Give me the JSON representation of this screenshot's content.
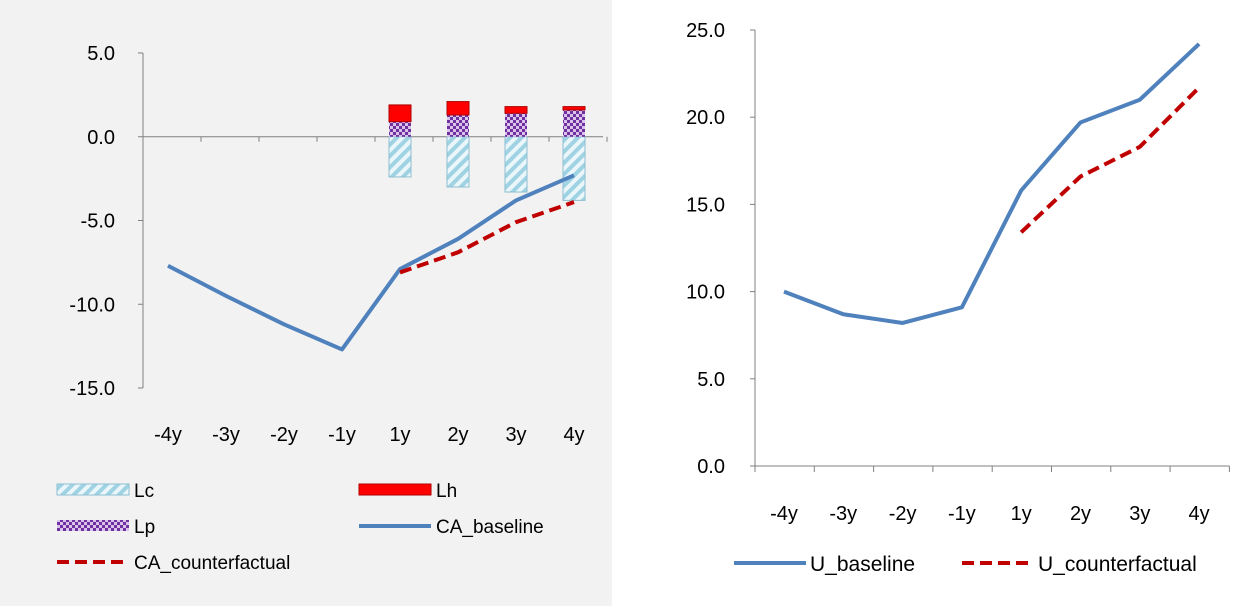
{
  "chart_data": [
    {
      "type": "bar",
      "title": "",
      "xlabel": "",
      "ylabel": "",
      "categories": [
        "-4y",
        "-3y",
        "-2y",
        "-1y",
        "1y",
        "2y",
        "3y",
        "4y"
      ],
      "ylim": [
        -15,
        5
      ],
      "yticks": [
        "5.0",
        "0.0",
        "-5.0",
        "-10.0",
        "-15.0"
      ],
      "grid": false,
      "legend_position": "bottom",
      "stacked_bars": [
        {
          "name": "Lc",
          "color": "#9fd3e3",
          "pattern": "diagonal-hatch",
          "values": [
            null,
            null,
            null,
            null,
            -2.4,
            -3.0,
            -3.3,
            -3.8
          ]
        },
        {
          "name": "Lh",
          "color": "#ff0000",
          "values": [
            null,
            null,
            null,
            null,
            1.0,
            0.8,
            0.4,
            0.2
          ]
        },
        {
          "name": "Lp",
          "color": "#7030a0",
          "pattern": "checker",
          "values": [
            null,
            null,
            null,
            null,
            0.9,
            1.3,
            1.4,
            1.6
          ]
        }
      ],
      "series": [
        {
          "name": "CA_baseline",
          "color": "#4f81bd",
          "style": "solid",
          "values": [
            -7.7,
            -9.5,
            -11.2,
            -12.7,
            -7.9,
            -6.1,
            -3.8,
            -2.3
          ]
        },
        {
          "name": "CA_counterfactual",
          "color": "#c00000",
          "style": "dashed",
          "values": [
            null,
            null,
            null,
            null,
            -8.1,
            -6.9,
            -5.1,
            -3.9
          ]
        }
      ],
      "legend": [
        "Lc",
        "Lh",
        "Lp",
        "CA_baseline",
        "CA_counterfactual"
      ]
    },
    {
      "type": "line",
      "title": "",
      "xlabel": "",
      "ylabel": "",
      "categories": [
        "-4y",
        "-3y",
        "-2y",
        "-1y",
        "1y",
        "2y",
        "3y",
        "4y"
      ],
      "ylim": [
        0,
        25
      ],
      "yticks": [
        "25.0",
        "20.0",
        "15.0",
        "10.0",
        "5.0",
        "0.0"
      ],
      "grid": false,
      "legend_position": "bottom",
      "series": [
        {
          "name": "U_baseline",
          "color": "#4f81bd",
          "style": "solid",
          "values": [
            10.0,
            8.7,
            8.2,
            9.1,
            15.8,
            19.7,
            21.0,
            24.2
          ]
        },
        {
          "name": "U_counterfactual",
          "color": "#c00000",
          "style": "dashed",
          "values": [
            null,
            null,
            null,
            null,
            13.4,
            16.6,
            18.3,
            21.7
          ]
        }
      ],
      "legend": [
        "U_baseline",
        "U_counterfactual"
      ]
    }
  ]
}
